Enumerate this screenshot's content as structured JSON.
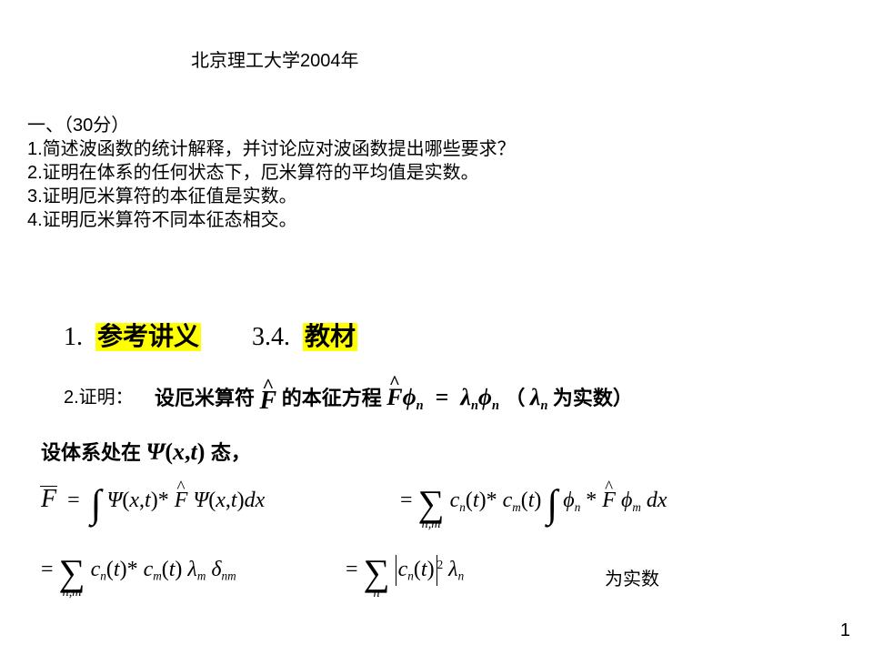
{
  "title": "北京理工大学2004年",
  "section": {
    "heading": "一、（30分）",
    "q1": "1.简述波函数的统计解释，并讨论应对波函数提出哪些要求？",
    "q2": "2.证明在体系的任何状态下，厄米算符的平均值是实数。",
    "q3": "3.证明厄米算符的本征值是实数。",
    "q4": "4.证明厄米算符不同本征态相交。"
  },
  "refs": {
    "n1": "1.",
    "label1": "参考讲义",
    "n2": "3.4.",
    "label2": "教材"
  },
  "proof_label": "2.证明：",
  "eigen": {
    "pre": "设厄米算符",
    "mid": " 的本征方程 ",
    "post_open": "（",
    "post_close": "  为实数）"
  },
  "state": {
    "pre": "设体系处在",
    "post": "态，"
  },
  "isreal": "为实数",
  "pagenum": "1",
  "sym": {
    "F": "F",
    "Fhat": "F",
    "phi": "ϕ",
    "lambda": "λ",
    "Psi": "Ψ",
    "x": "x",
    "t": "t",
    "c": "c",
    "d": "d",
    "delta": "δ",
    "n": "n",
    "m": "m",
    "nm": "n,m",
    "eq": "=",
    "star": "*",
    "two": "2"
  },
  "colors": {
    "bg": "#ffffff",
    "text": "#000000",
    "highlight": "#ffff00"
  },
  "fonts": {
    "body": "SimSun",
    "math": "Times New Roman",
    "title_size": 20,
    "body_size": 20,
    "ref_size": 28,
    "math_size": 24
  }
}
